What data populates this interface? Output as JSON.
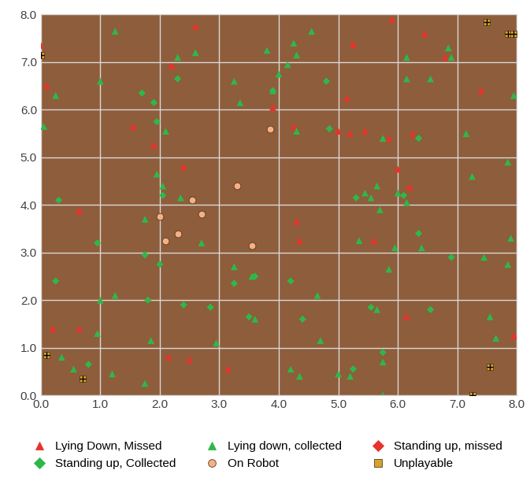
{
  "chart_data": {
    "type": "scatter",
    "xlim": [
      0,
      8
    ],
    "ylim": [
      0,
      8
    ],
    "xticks": [
      {
        "value": 0,
        "label": "0.0"
      },
      {
        "value": 1,
        "label": "1.0"
      },
      {
        "value": 2,
        "label": "2.0"
      },
      {
        "value": 3,
        "label": "3.0"
      },
      {
        "value": 4,
        "label": "4.0"
      },
      {
        "value": 5,
        "label": "5.0"
      },
      {
        "value": 6,
        "label": "6.0"
      },
      {
        "value": 7,
        "label": "7.0"
      },
      {
        "value": 8,
        "label": "8.0"
      }
    ],
    "yticks": [
      {
        "value": 0,
        "label": "0.0"
      },
      {
        "value": 1,
        "label": "1.0"
      },
      {
        "value": 2,
        "label": "2.0"
      },
      {
        "value": 3,
        "label": "3.0"
      },
      {
        "value": 4,
        "label": "4.0"
      },
      {
        "value": 5,
        "label": "5.0"
      },
      {
        "value": 6,
        "label": "6.0"
      },
      {
        "value": 7,
        "label": "7.0"
      },
      {
        "value": 8,
        "label": "8.0"
      }
    ],
    "grid": true,
    "legend": "bottom",
    "series": [
      {
        "name": "Lying Down, Missed",
        "color": "#e8322c",
        "marker": "triangle",
        "x": [
          0.0,
          0.1,
          0.2,
          0.65,
          1.55,
          1.9,
          2.15,
          2.4,
          2.5,
          2.6,
          3.15,
          3.9,
          4.25,
          4.3,
          4.35,
          5.0,
          5.15,
          5.2,
          5.45,
          5.6,
          5.85,
          5.9,
          6.0,
          6.15,
          6.25,
          6.45,
          6.8,
          7.4,
          7.95
        ],
        "values": [
          7.35,
          6.5,
          1.4,
          1.4,
          5.65,
          5.25,
          0.8,
          4.8,
          0.75,
          7.75,
          0.55,
          6.05,
          5.65,
          3.65,
          3.25,
          5.55,
          6.25,
          5.5,
          5.55,
          3.25,
          5.4,
          7.9,
          4.75,
          1.65,
          5.5,
          7.6,
          7.1,
          6.4,
          1.25
        ]
      },
      {
        "name": "Lying down, collected",
        "color": "#2eb84a",
        "marker": "triangle",
        "x": [
          0.05,
          0.25,
          0.35,
          0.55,
          0.95,
          1.0,
          1.0,
          1.25,
          1.25,
          1.2,
          1.75,
          1.75,
          1.85,
          1.95,
          2.05,
          2.1,
          2.3,
          2.35,
          2.6,
          2.7,
          2.95,
          3.25,
          3.25,
          3.35,
          3.6,
          3.55,
          3.8,
          3.9,
          4.0,
          4.15,
          4.25,
          4.3,
          4.3,
          4.2,
          4.35,
          4.7,
          4.65,
          4.55,
          5.0,
          5.2,
          5.35,
          5.45,
          5.55,
          5.65,
          5.7,
          5.75,
          5.75,
          5.75,
          5.85,
          5.95,
          6.0,
          6.15,
          6.15,
          6.15,
          6.4,
          6.55,
          6.85,
          6.9,
          7.15,
          7.25,
          7.45,
          7.55,
          7.65,
          7.85,
          7.85,
          7.9,
          7.95,
          5.65
        ],
        "values": [
          5.65,
          6.3,
          0.8,
          0.55,
          1.3,
          6.6,
          2.0,
          7.65,
          2.1,
          0.45,
          0.25,
          3.7,
          1.15,
          4.65,
          4.4,
          5.55,
          7.1,
          4.15,
          7.2,
          3.2,
          1.1,
          6.6,
          2.7,
          6.15,
          1.6,
          2.5,
          7.25,
          6.4,
          6.75,
          6.95,
          7.4,
          7.15,
          5.55,
          0.55,
          0.4,
          1.15,
          2.1,
          7.65,
          0.45,
          0.4,
          3.25,
          4.25,
          4.15,
          4.4,
          3.9,
          5.4,
          0.7,
          0.0,
          2.65,
          3.1,
          4.25,
          7.1,
          6.65,
          4.05,
          3.1,
          6.65,
          7.3,
          7.1,
          5.5,
          4.6,
          2.9,
          1.65,
          1.2,
          4.9,
          2.75,
          3.3,
          6.3,
          1.8
        ]
      },
      {
        "name": "Standing up, missed",
        "color": "#e8322c",
        "marker": "diamond",
        "x": [
          0.65,
          2.2,
          5.25,
          6.2
        ],
        "values": [
          3.85,
          6.9,
          7.35,
          4.35
        ]
      },
      {
        "name": "Standing up, Collected",
        "color": "#2eb84a",
        "marker": "diamond",
        "x": [
          0.3,
          0.25,
          0.8,
          0.95,
          1.7,
          1.75,
          1.8,
          1.9,
          1.95,
          2.0,
          2.05,
          2.3,
          2.4,
          2.85,
          3.25,
          3.5,
          3.6,
          3.9,
          4.2,
          4.4,
          4.8,
          4.85,
          5.25,
          5.3,
          5.55,
          5.75,
          6.1,
          6.35,
          6.35,
          6.55,
          6.9
        ],
        "values": [
          4.1,
          2.4,
          0.65,
          3.2,
          6.35,
          2.95,
          2.0,
          6.15,
          5.75,
          2.75,
          4.2,
          6.65,
          1.9,
          1.85,
          2.35,
          1.65,
          2.5,
          6.4,
          2.4,
          1.6,
          6.6,
          5.6,
          0.55,
          4.15,
          1.85,
          0.9,
          4.2,
          5.4,
          3.4,
          1.8,
          2.9
        ]
      },
      {
        "name": "On Robot",
        "color": "#f4b183",
        "marker": "circle",
        "x": [
          3.85,
          3.3,
          2.55,
          2.0,
          2.7,
          2.3,
          2.1,
          3.55
        ],
        "values": [
          5.6,
          4.4,
          4.1,
          3.75,
          3.8,
          3.4,
          3.25,
          3.15
        ]
      },
      {
        "name": "Unplayable",
        "color": "#d4a52a",
        "marker": "square_cross",
        "x": [
          0.0,
          0.1,
          0.7,
          7.5,
          7.85,
          7.95,
          7.55,
          7.25
        ],
        "values": [
          7.15,
          0.85,
          0.35,
          7.85,
          7.6,
          7.6,
          0.6,
          0.0
        ]
      }
    ]
  }
}
